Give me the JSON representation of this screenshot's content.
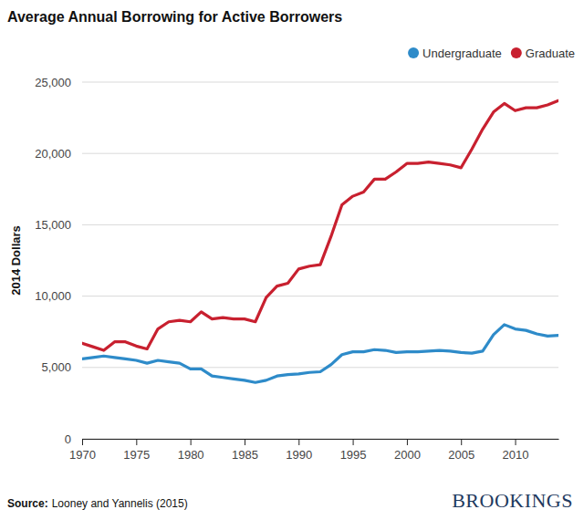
{
  "chart_data": {
    "type": "line",
    "title": "Average Annual Borrowing for Active Borrowers",
    "y_label": "2014 Dollars",
    "source_label": "Source:",
    "source": "Looney and Yannelis (2015)",
    "branding": "BROOKINGS",
    "x": [
      1970,
      1971,
      1972,
      1973,
      1974,
      1975,
      1976,
      1977,
      1978,
      1979,
      1980,
      1981,
      1982,
      1983,
      1984,
      1985,
      1986,
      1987,
      1988,
      1989,
      1990,
      1991,
      1992,
      1993,
      1994,
      1995,
      1996,
      1997,
      1998,
      1999,
      2000,
      2001,
      2002,
      2003,
      2004,
      2005,
      2006,
      2007,
      2008,
      2009,
      2010,
      2011,
      2012,
      2013,
      2014
    ],
    "series": [
      {
        "name": "Undergraduate",
        "color": "#2e8bc9",
        "values": [
          5600,
          5700,
          5800,
          5700,
          5600,
          5500,
          5300,
          5500,
          5400,
          5300,
          4900,
          4900,
          4400,
          4300,
          4200,
          4100,
          3950,
          4100,
          4400,
          4500,
          4550,
          4650,
          4700,
          5200,
          5900,
          6100,
          6100,
          6250,
          6200,
          6050,
          6100,
          6100,
          6150,
          6200,
          6150,
          6050,
          6000,
          6150,
          7300,
          8000,
          7700,
          7600,
          7350,
          7200,
          7250
        ]
      },
      {
        "name": "Graduate",
        "color": "#c8202f",
        "values": [
          6700,
          6450,
          6200,
          6800,
          6800,
          6500,
          6300,
          7700,
          8200,
          8300,
          8200,
          8900,
          8400,
          8500,
          8400,
          8400,
          8200,
          9900,
          10700,
          10900,
          11900,
          12100,
          12200,
          14200,
          16400,
          17000,
          17300,
          18200,
          18200,
          18700,
          19300,
          19300,
          19400,
          19300,
          19200,
          19000,
          20300,
          21700,
          22900,
          23500,
          23000,
          23200,
          23200,
          23400,
          23700
        ]
      }
    ],
    "xlim": [
      1970,
      2014
    ],
    "xticks": [
      1970,
      1975,
      1980,
      1985,
      1990,
      1995,
      2000,
      2005,
      2010
    ],
    "ylim": [
      0,
      25000
    ],
    "yticks": [
      0,
      {
        "value": 5000,
        "label": "5,000"
      },
      {
        "value": 10000,
        "label": "10,000"
      },
      {
        "value": 15000,
        "label": "15,000"
      },
      {
        "value": 20000,
        "label": "20,000"
      },
      {
        "value": 25000,
        "label": "25,000"
      }
    ],
    "grid": true,
    "legend": "top-right"
  }
}
